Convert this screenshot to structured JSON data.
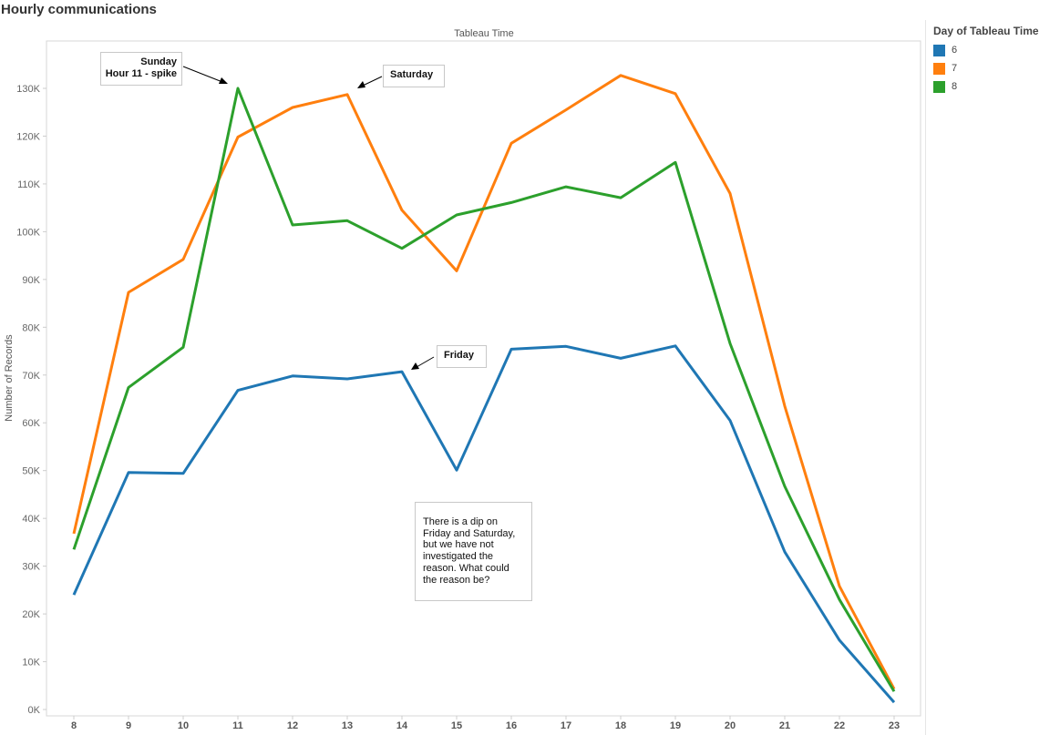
{
  "title": "Hourly communications",
  "chart_data": {
    "type": "line",
    "title": "",
    "top_axis_label": "Tableau Time",
    "xlabel": "",
    "ylabel": "Number of Records",
    "x": [
      8,
      9,
      10,
      11,
      12,
      13,
      14,
      15,
      16,
      17,
      18,
      19,
      20,
      21,
      22,
      23
    ],
    "y_ticks": [
      "0K",
      "10K",
      "20K",
      "30K",
      "40K",
      "50K",
      "60K",
      "70K",
      "80K",
      "90K",
      "100K",
      "110K",
      "120K",
      "130K"
    ],
    "ylim": [
      0,
      139000
    ],
    "grid": false,
    "legend_title": "Day of Tableau Time",
    "legend_position": "right",
    "series": [
      {
        "name": "6",
        "color": "#1f77b4",
        "values": [
          24000,
          49600,
          49400,
          66800,
          69800,
          69200,
          70700,
          50100,
          75400,
          76000,
          73500,
          76100,
          60500,
          33000,
          14500,
          1500
        ]
      },
      {
        "name": "7",
        "color": "#ff7f0e",
        "values": [
          36800,
          87300,
          94200,
          119800,
          126000,
          128700,
          104500,
          91800,
          118500,
          125500,
          132700,
          128900,
          108000,
          63500,
          25800,
          4300
        ]
      },
      {
        "name": "8",
        "color": "#2ca02c",
        "values": [
          33500,
          67400,
          75800,
          130000,
          101400,
          102300,
          96500,
          103500,
          106100,
          109400,
          107100,
          114500,
          76600,
          46700,
          23000,
          3800
        ]
      }
    ],
    "annotations": [
      {
        "id": "sunday",
        "lines": [
          "Sunday",
          "Hour 11 - spike"
        ]
      },
      {
        "id": "saturday",
        "lines": [
          "Saturday"
        ]
      },
      {
        "id": "friday",
        "lines": [
          "Friday"
        ]
      },
      {
        "id": "note",
        "lines": [
          "There is a dip on",
          "Friday and Saturday,",
          "but we have not",
          "investigated the",
          "reason. What could",
          "the reason be?"
        ]
      }
    ]
  }
}
